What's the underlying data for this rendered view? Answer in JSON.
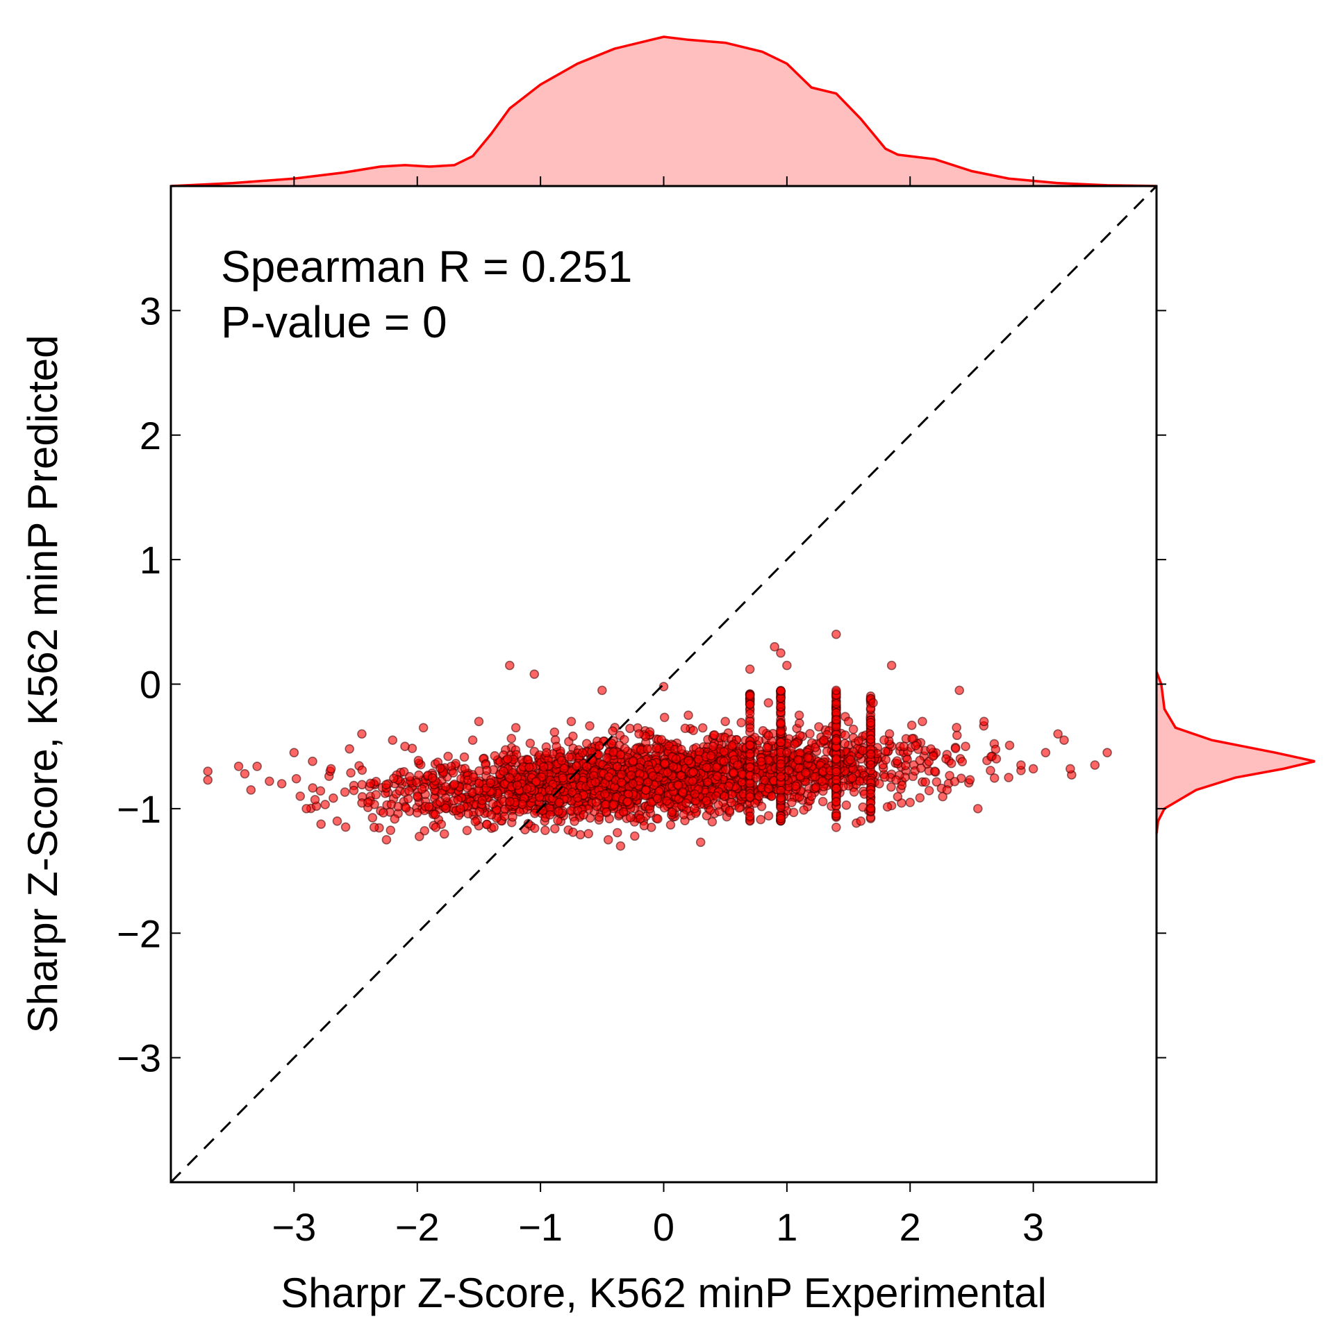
{
  "chart_data": {
    "type": "scatter",
    "xlabel": "Sharpr Z-Score, K562 minP Experimental",
    "ylabel": "Sharpr Z-Score, K562 minP Predicted",
    "xlim": [
      -4.0,
      4.0
    ],
    "ylim": [
      -4.0,
      4.0
    ],
    "xticks": [
      -3,
      -2,
      -1,
      0,
      1,
      2,
      3
    ],
    "yticks": [
      -3,
      -2,
      -1,
      0,
      1,
      2,
      3
    ],
    "xtick_labels": [
      "−3",
      "−2",
      "−1",
      "0",
      "1",
      "2",
      "3"
    ],
    "ytick_labels": [
      "−3",
      "−2",
      "−1",
      "0",
      "1",
      "2",
      "3"
    ],
    "grid": false,
    "reference_line": {
      "style": "dashed",
      "color": "#000000",
      "from": [
        -4,
        -4
      ],
      "to": [
        4,
        4
      ]
    },
    "annotations": [
      "Spearman R = 0.251",
      "P-value = 0"
    ],
    "colors": {
      "points": "#ff0000",
      "point_edge": "#3a0000",
      "kde_fill": "#ffbfbf",
      "kde_line": "#ff0000"
    },
    "series": [
      {
        "points": [
          [
            -3.7,
            -0.7
          ],
          [
            -3.7,
            -0.77
          ],
          [
            -3.45,
            -0.66
          ],
          [
            -3.4,
            -0.72
          ],
          [
            -3.3,
            -0.66
          ],
          [
            -3.35,
            -0.85
          ],
          [
            -3.2,
            -0.78
          ],
          [
            -3.1,
            -0.8
          ],
          [
            -3.0,
            -0.55
          ],
          [
            -2.95,
            -0.9
          ],
          [
            -2.9,
            -1.0
          ],
          [
            -2.85,
            -0.62
          ],
          [
            -2.7,
            -0.68
          ],
          [
            -2.65,
            -1.1
          ],
          [
            -2.55,
            -0.52
          ],
          [
            -2.45,
            -0.4
          ],
          [
            -2.4,
            -0.95
          ],
          [
            -2.35,
            -1.15
          ],
          [
            -2.2,
            -0.45
          ],
          [
            -2.25,
            -1.25
          ],
          [
            -2.1,
            -0.5
          ],
          [
            -2.0,
            -0.9
          ],
          [
            -1.95,
            -0.35
          ],
          [
            -1.85,
            -1.15
          ],
          [
            -1.75,
            -0.58
          ],
          [
            -1.65,
            -1.0
          ],
          [
            -1.55,
            -0.45
          ],
          [
            -1.5,
            -0.3
          ],
          [
            -1.4,
            -1.05
          ],
          [
            -1.3,
            -0.7
          ],
          [
            -1.25,
            0.15
          ],
          [
            -1.2,
            -0.35
          ],
          [
            -1.1,
            -1.12
          ],
          [
            -1.05,
            0.08
          ],
          [
            -0.95,
            -0.55
          ],
          [
            -0.85,
            -0.95
          ],
          [
            -0.75,
            -0.3
          ],
          [
            -0.65,
            -1.05
          ],
          [
            -0.5,
            -0.05
          ],
          [
            -0.45,
            -1.25
          ],
          [
            -0.35,
            -1.3
          ],
          [
            -0.25,
            -0.8
          ],
          [
            -0.2,
            -0.4
          ],
          [
            -0.1,
            -1.15
          ],
          [
            0.0,
            -0.02
          ],
          [
            0.1,
            -0.6
          ],
          [
            0.2,
            -0.25
          ],
          [
            0.25,
            -1.0
          ],
          [
            0.3,
            -1.27
          ],
          [
            0.4,
            -0.5
          ],
          [
            0.5,
            -0.3
          ],
          [
            0.55,
            -0.95
          ],
          [
            0.6,
            -0.65
          ],
          [
            0.7,
            0.12
          ],
          [
            0.75,
            -0.75
          ],
          [
            0.85,
            -0.15
          ],
          [
            0.9,
            0.3
          ],
          [
            0.95,
            0.25
          ],
          [
            1.0,
            0.15
          ],
          [
            1.0,
            -0.55
          ],
          [
            1.1,
            -0.25
          ],
          [
            1.2,
            -0.9
          ],
          [
            1.3,
            -0.45
          ],
          [
            1.4,
            0.4
          ],
          [
            1.4,
            -0.05
          ],
          [
            1.4,
            -0.6
          ],
          [
            1.4,
            -1.15
          ],
          [
            1.5,
            -0.3
          ],
          [
            1.6,
            -1.1
          ],
          [
            1.7,
            -0.15
          ],
          [
            1.75,
            -0.8
          ],
          [
            1.85,
            0.15
          ],
          [
            1.95,
            -0.5
          ],
          [
            2.0,
            -0.95
          ],
          [
            2.1,
            -0.3
          ],
          [
            2.2,
            -0.7
          ],
          [
            2.3,
            -0.85
          ],
          [
            2.4,
            -0.05
          ],
          [
            2.45,
            -0.5
          ],
          [
            2.55,
            -1.0
          ],
          [
            2.6,
            -0.3
          ],
          [
            2.7,
            -0.6
          ],
          [
            2.8,
            -0.75
          ],
          [
            2.9,
            -0.65
          ],
          [
            3.0,
            -0.68
          ],
          [
            3.1,
            -0.55
          ],
          [
            3.2,
            -0.4
          ],
          [
            3.25,
            -0.45
          ],
          [
            3.3,
            -0.68
          ],
          [
            3.5,
            -0.65
          ],
          [
            3.6,
            -0.55
          ]
        ]
      }
    ],
    "top_kde": {
      "x": [
        -4.0,
        -3.5,
        -3.0,
        -2.6,
        -2.3,
        -2.1,
        -1.9,
        -1.7,
        -1.55,
        -1.4,
        -1.25,
        -1.0,
        -0.7,
        -0.4,
        -0.1,
        0.0,
        0.2,
        0.5,
        0.8,
        1.0,
        1.2,
        1.4,
        1.6,
        1.8,
        1.9,
        2.0,
        2.2,
        2.5,
        2.8,
        3.2,
        3.6,
        4.0
      ],
      "density": [
        0.0,
        0.02,
        0.05,
        0.09,
        0.13,
        0.14,
        0.13,
        0.14,
        0.2,
        0.35,
        0.52,
        0.68,
        0.82,
        0.92,
        0.98,
        1.0,
        0.98,
        0.96,
        0.9,
        0.82,
        0.66,
        0.62,
        0.45,
        0.25,
        0.21,
        0.2,
        0.18,
        0.1,
        0.05,
        0.02,
        0.005,
        0.0
      ]
    },
    "right_kde": {
      "y": [
        0.1,
        0.0,
        -0.2,
        -0.35,
        -0.45,
        -0.55,
        -0.62,
        -0.68,
        -0.75,
        -0.85,
        -1.0,
        -1.1,
        -1.2
      ],
      "density": [
        0.0,
        0.03,
        0.05,
        0.12,
        0.35,
        0.75,
        1.0,
        0.8,
        0.5,
        0.25,
        0.05,
        0.01,
        0.0
      ]
    }
  }
}
